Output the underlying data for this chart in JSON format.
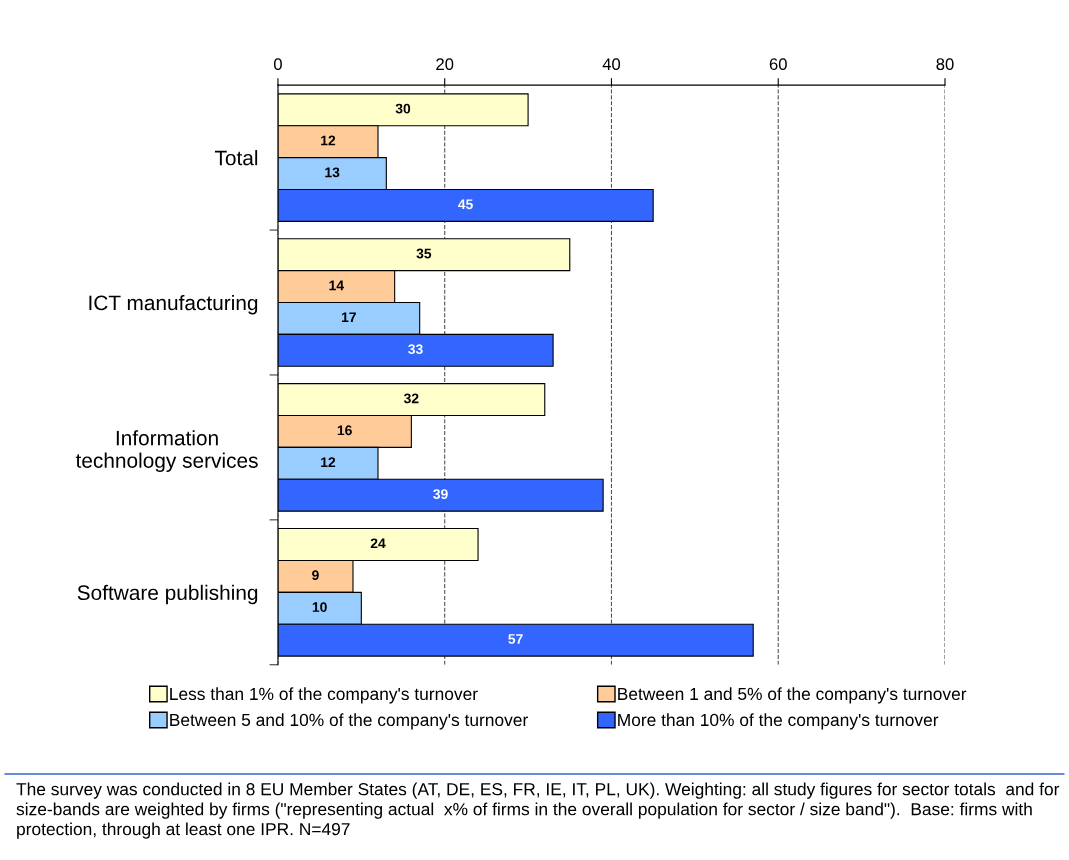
{
  "chart_data": {
    "type": "bar",
    "orientation": "horizontal",
    "categories": [
      "Total",
      "ICT manufacturing",
      "Information\ntechnology services",
      "Software publishing"
    ],
    "series": [
      {
        "name": "Less than 1% of the company's turnover",
        "color": "#ffffcc",
        "values": [
          30,
          35,
          32,
          24
        ]
      },
      {
        "name": "Between 1 and 5% of the company's turnover",
        "color": "#ffcc99",
        "values": [
          12,
          14,
          16,
          9
        ]
      },
      {
        "name": "Between 5 and 10% of the company's turnover",
        "color": "#99ccff",
        "values": [
          13,
          17,
          12,
          10
        ]
      },
      {
        "name": "More than 10% of the company's turnover",
        "color": "#3366ff",
        "values": [
          45,
          33,
          39,
          57
        ]
      }
    ],
    "xlim": [
      0,
      80
    ],
    "xticks": [
      0,
      20,
      40,
      60,
      80
    ],
    "grid": "x",
    "data_labels": true,
    "legend": "bottom",
    "annotations": [
      "The survey was conducted in 8 EU Member States (AT, DE, ES, FR, IE, IT, PL, UK). Weighting: all study figures for sector totals  and for size-bands are weighted by firms (\"representing actual  x% of firms in the overall population for sector / size band\").  Base: firms with protection, through at least one IPR. N=497"
    ]
  }
}
